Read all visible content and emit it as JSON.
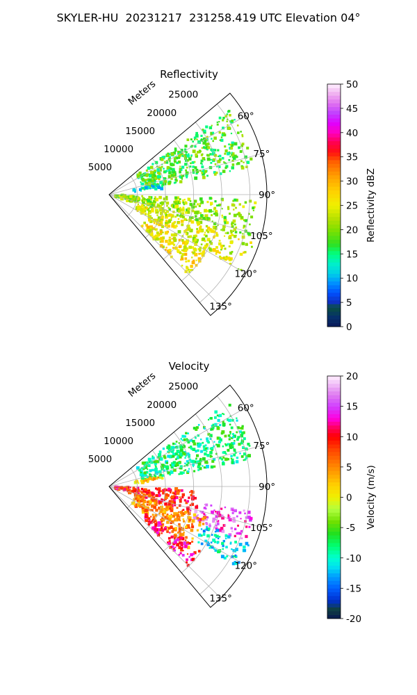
{
  "suptitle": "SKYLER-HU  20231217  231258.419 UTC Elevation 04°",
  "chart_data": [
    {
      "type": "polar-sector",
      "title": "Reflectivity",
      "range_label": "Meters",
      "range_ticks": [
        5000,
        10000,
        15000,
        20000,
        25000
      ],
      "azimuth_ticks": [
        "60°",
        "75°",
        "90°",
        "105°",
        "120°",
        "135°"
      ],
      "azimuth_range_deg": [
        50,
        140
      ],
      "range_max_m": 28000,
      "grid": true,
      "colorbar": {
        "label": "Reflectivity dBZ",
        "range": [
          0,
          50
        ],
        "ticks": [
          0,
          5,
          10,
          15,
          20,
          25,
          30,
          35,
          40,
          45,
          50
        ]
      },
      "echo_regions": [
        {
          "az": [
            55,
            80
          ],
          "range_m": [
            6000,
            26000
          ],
          "value": 18
        },
        {
          "az": [
            78,
            84
          ],
          "range_m": [
            4500,
            10000
          ],
          "value": 13
        },
        {
          "az": [
            92,
            108
          ],
          "range_m": [
            1000,
            26000
          ],
          "value": 21
        },
        {
          "az": [
            108,
            120
          ],
          "range_m": [
            5000,
            27000
          ],
          "value": 24
        },
        {
          "az": [
            120,
            135
          ],
          "range_m": [
            8000,
            20000
          ],
          "value": 26
        }
      ]
    },
    {
      "type": "polar-sector",
      "title": "Velocity",
      "range_label": "Meters",
      "range_ticks": [
        5000,
        10000,
        15000,
        20000,
        25000
      ],
      "azimuth_ticks": [
        "60°",
        "75°",
        "90°",
        "105°",
        "120°",
        "135°"
      ],
      "azimuth_range_deg": [
        50,
        140
      ],
      "range_max_m": 28000,
      "grid": true,
      "colorbar": {
        "label": "Velocity (m/s)",
        "range": [
          -20,
          20
        ],
        "ticks": [
          -20,
          -15,
          -10,
          -5,
          0,
          5,
          10,
          15,
          20
        ]
      },
      "echo_regions": [
        {
          "az": [
            55,
            80
          ],
          "range_m": [
            6000,
            26000
          ],
          "value": -8
        },
        {
          "az": [
            78,
            84
          ],
          "range_m": [
            4500,
            10000
          ],
          "value": 2
        },
        {
          "az": [
            92,
            108
          ],
          "range_m": [
            1000,
            16000
          ],
          "value": 9
        },
        {
          "az": [
            100,
            112
          ],
          "range_m": [
            16000,
            26000
          ],
          "value": 15
        },
        {
          "az": [
            112,
            122
          ],
          "range_m": [
            18000,
            27000
          ],
          "value": -11
        },
        {
          "az": [
            108,
            128
          ],
          "range_m": [
            5000,
            18000
          ],
          "value": 5
        },
        {
          "az": [
            125,
            135
          ],
          "range_m": [
            8000,
            20000
          ],
          "value": 11
        }
      ]
    }
  ]
}
